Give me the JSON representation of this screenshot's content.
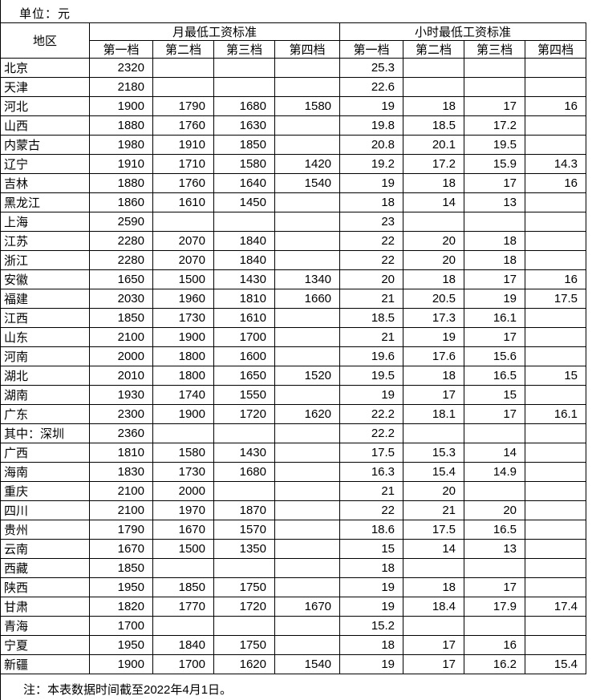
{
  "unit_label": "单位：元",
  "note": "注：本表数据时间截至2022年4月1日。",
  "colors": {
    "background": "#ffffff",
    "border": "#000000",
    "text": "#000000"
  },
  "table": {
    "region_header": "地区",
    "monthly_group_header": "月最低工资标准",
    "hourly_group_header": "小时最低工资标准",
    "tier_headers": [
      "第一档",
      "第二档",
      "第三档",
      "第四档"
    ],
    "rows": [
      {
        "region": "北京",
        "monthly": [
          "2320",
          "",
          "",
          ""
        ],
        "hourly": [
          "25.3",
          "",
          "",
          ""
        ]
      },
      {
        "region": "天津",
        "monthly": [
          "2180",
          "",
          "",
          ""
        ],
        "hourly": [
          "22.6",
          "",
          "",
          ""
        ]
      },
      {
        "region": "河北",
        "monthly": [
          "1900",
          "1790",
          "1680",
          "1580"
        ],
        "hourly": [
          "19",
          "18",
          "17",
          "16"
        ]
      },
      {
        "region": "山西",
        "monthly": [
          "1880",
          "1760",
          "1630",
          ""
        ],
        "hourly": [
          "19.8",
          "18.5",
          "17.2",
          ""
        ]
      },
      {
        "region": "内蒙古",
        "monthly": [
          "1980",
          "1910",
          "1850",
          ""
        ],
        "hourly": [
          "20.8",
          "20.1",
          "19.5",
          ""
        ]
      },
      {
        "region": "辽宁",
        "monthly": [
          "1910",
          "1710",
          "1580",
          "1420"
        ],
        "hourly": [
          "19.2",
          "17.2",
          "15.9",
          "14.3"
        ]
      },
      {
        "region": "吉林",
        "monthly": [
          "1880",
          "1760",
          "1640",
          "1540"
        ],
        "hourly": [
          "19",
          "18",
          "17",
          "16"
        ]
      },
      {
        "region": "黑龙江",
        "monthly": [
          "1860",
          "1610",
          "1450",
          ""
        ],
        "hourly": [
          "18",
          "14",
          "13",
          ""
        ]
      },
      {
        "region": "上海",
        "monthly": [
          "2590",
          "",
          "",
          ""
        ],
        "hourly": [
          "23",
          "",
          "",
          ""
        ]
      },
      {
        "region": "江苏",
        "monthly": [
          "2280",
          "2070",
          "1840",
          ""
        ],
        "hourly": [
          "22",
          "20",
          "18",
          ""
        ]
      },
      {
        "region": "浙江",
        "monthly": [
          "2280",
          "2070",
          "1840",
          ""
        ],
        "hourly": [
          "22",
          "20",
          "18",
          ""
        ]
      },
      {
        "region": "安徽",
        "monthly": [
          "1650",
          "1500",
          "1430",
          "1340"
        ],
        "hourly": [
          "20",
          "18",
          "17",
          "16"
        ]
      },
      {
        "region": "福建",
        "monthly": [
          "2030",
          "1960",
          "1810",
          "1660"
        ],
        "hourly": [
          "21",
          "20.5",
          "19",
          "17.5"
        ]
      },
      {
        "region": "江西",
        "monthly": [
          "1850",
          "1730",
          "1610",
          ""
        ],
        "hourly": [
          "18.5",
          "17.3",
          "16.1",
          ""
        ]
      },
      {
        "region": "山东",
        "monthly": [
          "2100",
          "1900",
          "1700",
          ""
        ],
        "hourly": [
          "21",
          "19",
          "17",
          ""
        ]
      },
      {
        "region": "河南",
        "monthly": [
          "2000",
          "1800",
          "1600",
          ""
        ],
        "hourly": [
          "19.6",
          "17.6",
          "15.6",
          ""
        ]
      },
      {
        "region": "湖北",
        "monthly": [
          "2010",
          "1800",
          "1650",
          "1520"
        ],
        "hourly": [
          "19.5",
          "18",
          "16.5",
          "15"
        ]
      },
      {
        "region": "湖南",
        "monthly": [
          "1930",
          "1740",
          "1550",
          ""
        ],
        "hourly": [
          "19",
          "17",
          "15",
          ""
        ]
      },
      {
        "region": "广东",
        "monthly": [
          "2300",
          "1900",
          "1720",
          "1620"
        ],
        "hourly": [
          "22.2",
          "18.1",
          "17",
          "16.1"
        ]
      },
      {
        "region": "其中：深圳",
        "monthly": [
          "2360",
          "",
          "",
          ""
        ],
        "hourly": [
          "22.2",
          "",
          "",
          ""
        ]
      },
      {
        "region": "广西",
        "monthly": [
          "1810",
          "1580",
          "1430",
          ""
        ],
        "hourly": [
          "17.5",
          "15.3",
          "14",
          ""
        ]
      },
      {
        "region": "海南",
        "monthly": [
          "1830",
          "1730",
          "1680",
          ""
        ],
        "hourly": [
          "16.3",
          "15.4",
          "14.9",
          ""
        ]
      },
      {
        "region": "重庆",
        "monthly": [
          "2100",
          "2000",
          "",
          ""
        ],
        "hourly": [
          "21",
          "20",
          "",
          ""
        ]
      },
      {
        "region": "四川",
        "monthly": [
          "2100",
          "1970",
          "1870",
          ""
        ],
        "hourly": [
          "22",
          "21",
          "20",
          ""
        ]
      },
      {
        "region": "贵州",
        "monthly": [
          "1790",
          "1670",
          "1570",
          ""
        ],
        "hourly": [
          "18.6",
          "17.5",
          "16.5",
          ""
        ]
      },
      {
        "region": "云南",
        "monthly": [
          "1670",
          "1500",
          "1350",
          ""
        ],
        "hourly": [
          "15",
          "14",
          "13",
          ""
        ]
      },
      {
        "region": "西藏",
        "monthly": [
          "1850",
          "",
          "",
          ""
        ],
        "hourly": [
          "18",
          "",
          "",
          ""
        ]
      },
      {
        "region": "陕西",
        "monthly": [
          "1950",
          "1850",
          "1750",
          ""
        ],
        "hourly": [
          "19",
          "18",
          "17",
          ""
        ]
      },
      {
        "region": "甘肃",
        "monthly": [
          "1820",
          "1770",
          "1720",
          "1670"
        ],
        "hourly": [
          "19",
          "18.4",
          "17.9",
          "17.4"
        ]
      },
      {
        "region": "青海",
        "monthly": [
          "1700",
          "",
          "",
          ""
        ],
        "hourly": [
          "15.2",
          "",
          "",
          ""
        ]
      },
      {
        "region": "宁夏",
        "monthly": [
          "1950",
          "1840",
          "1750",
          ""
        ],
        "hourly": [
          "18",
          "17",
          "16",
          ""
        ]
      },
      {
        "region": "新疆",
        "monthly": [
          "1900",
          "1700",
          "1620",
          "1540"
        ],
        "hourly": [
          "19",
          "17",
          "16.2",
          "15.4"
        ]
      }
    ]
  }
}
